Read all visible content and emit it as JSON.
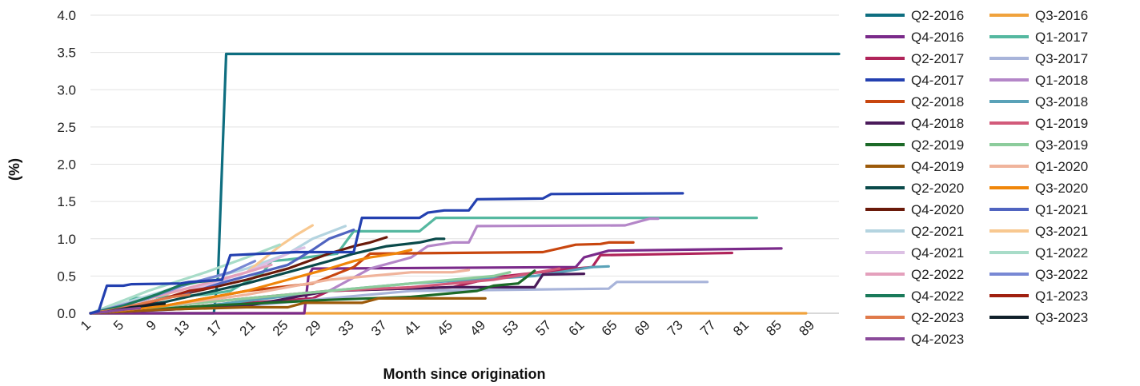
{
  "chart_data": {
    "type": "line",
    "title": "",
    "xlabel": "Month since origination",
    "ylabel": "(%)",
    "xlim": [
      1,
      92
    ],
    "ylim": [
      0,
      4.0
    ],
    "x_ticks": [
      1,
      5,
      9,
      13,
      17,
      21,
      25,
      29,
      33,
      37,
      41,
      45,
      49,
      53,
      57,
      61,
      65,
      69,
      73,
      77,
      81,
      85,
      89
    ],
    "x_tick_labels": [
      "1",
      "5",
      "9",
      "13",
      "17",
      "21",
      "25",
      "29",
      "33",
      "37",
      "41",
      "45",
      "49",
      "53",
      "57",
      "61",
      "65",
      "69",
      "73",
      "77",
      "81",
      "85",
      "89"
    ],
    "y_ticks": [
      0,
      0.5,
      1.0,
      1.5,
      2.0,
      2.5,
      3.0,
      3.5,
      4.0
    ],
    "y_tick_labels": [
      "0.0",
      "0.5",
      "1.0",
      "1.5",
      "2.0",
      "2.5",
      "3.0",
      "3.5",
      "4.0"
    ],
    "grid": "horizontal",
    "legend_position": "right",
    "series": [
      {
        "name": "Q2-2016",
        "color": "#0E6E80",
        "points": [
          [
            1,
            0
          ],
          [
            16,
            0
          ],
          [
            16.5,
            0.5
          ],
          [
            17.5,
            3.48
          ],
          [
            92,
            3.48
          ]
        ]
      },
      {
        "name": "Q3-2016",
        "color": "#F0A23C",
        "points": [
          [
            1,
            0
          ],
          [
            88,
            0
          ]
        ]
      },
      {
        "name": "Q4-2016",
        "color": "#7A2A8A",
        "points": [
          [
            1,
            0
          ],
          [
            27,
            0
          ],
          [
            27.5,
            0.5
          ],
          [
            28,
            0.6
          ],
          [
            60,
            0.62
          ],
          [
            61,
            0.75
          ],
          [
            64,
            0.84
          ],
          [
            85,
            0.87
          ]
        ]
      },
      {
        "name": "Q1-2017",
        "color": "#55B8A0",
        "points": [
          [
            1,
            0
          ],
          [
            5,
            0.05
          ],
          [
            6,
            0.2
          ],
          [
            15,
            0.25
          ],
          [
            18,
            0.3
          ],
          [
            22,
            0.55
          ],
          [
            23,
            0.7
          ],
          [
            25,
            0.72
          ],
          [
            31,
            0.8
          ],
          [
            33,
            1.1
          ],
          [
            41,
            1.1
          ],
          [
            43,
            1.28
          ],
          [
            82,
            1.28
          ]
        ]
      },
      {
        "name": "Q2-2017",
        "color": "#B0245A",
        "points": [
          [
            1,
            0
          ],
          [
            15,
            0.1
          ],
          [
            28,
            0.2
          ],
          [
            30,
            0.3
          ],
          [
            45,
            0.35
          ],
          [
            50,
            0.48
          ],
          [
            58,
            0.58
          ],
          [
            62,
            0.62
          ],
          [
            63,
            0.78
          ],
          [
            79,
            0.81
          ]
        ]
      },
      {
        "name": "Q3-2017",
        "color": "#A8B4DA",
        "points": [
          [
            1,
            0
          ],
          [
            20,
            0.1
          ],
          [
            30,
            0.2
          ],
          [
            40,
            0.3
          ],
          [
            64,
            0.33
          ],
          [
            65,
            0.42
          ],
          [
            76,
            0.42
          ]
        ]
      },
      {
        "name": "Q4-2017",
        "color": "#2340B0",
        "points": [
          [
            1,
            0
          ],
          [
            2,
            0.03
          ],
          [
            3,
            0.37
          ],
          [
            5,
            0.37
          ],
          [
            6,
            0.39
          ],
          [
            12,
            0.4
          ],
          [
            13,
            0.42
          ],
          [
            17,
            0.45
          ],
          [
            18,
            0.78
          ],
          [
            22,
            0.8
          ],
          [
            26,
            0.82
          ],
          [
            33,
            0.82
          ],
          [
            34,
            1.28
          ],
          [
            41,
            1.28
          ],
          [
            42,
            1.35
          ],
          [
            44,
            1.38
          ],
          [
            47,
            1.38
          ],
          [
            48,
            1.53
          ],
          [
            56,
            1.54
          ],
          [
            57,
            1.6
          ],
          [
            73,
            1.61
          ]
        ]
      },
      {
        "name": "Q1-2018",
        "color": "#B486C8",
        "points": [
          [
            1,
            0
          ],
          [
            20,
            0.2
          ],
          [
            30,
            0.3
          ],
          [
            35,
            0.6
          ],
          [
            40,
            0.75
          ],
          [
            42,
            0.9
          ],
          [
            45,
            0.95
          ],
          [
            47,
            0.95
          ],
          [
            48,
            1.17
          ],
          [
            66,
            1.18
          ],
          [
            69,
            1.27
          ],
          [
            70,
            1.27
          ]
        ]
      },
      {
        "name": "Q2-2018",
        "color": "#C8460E",
        "points": [
          [
            1,
            0
          ],
          [
            10,
            0.1
          ],
          [
            20,
            0.3
          ],
          [
            28,
            0.4
          ],
          [
            33,
            0.62
          ],
          [
            35,
            0.8
          ],
          [
            56,
            0.82
          ],
          [
            60,
            0.92
          ],
          [
            63,
            0.93
          ],
          [
            64,
            0.95
          ],
          [
            67,
            0.95
          ]
        ]
      },
      {
        "name": "Q3-2018",
        "color": "#5AA2B8",
        "points": [
          [
            1,
            0
          ],
          [
            15,
            0.1
          ],
          [
            30,
            0.3
          ],
          [
            40,
            0.4
          ],
          [
            55,
            0.5
          ],
          [
            62,
            0.62
          ],
          [
            64,
            0.63
          ]
        ]
      },
      {
        "name": "Q4-2018",
        "color": "#4A1A5A",
        "points": [
          [
            1,
            0
          ],
          [
            20,
            0.1
          ],
          [
            30,
            0.3
          ],
          [
            45,
            0.35
          ],
          [
            55,
            0.35
          ],
          [
            56,
            0.52
          ],
          [
            61,
            0.53
          ]
        ]
      },
      {
        "name": "Q1-2019",
        "color": "#D25A7A",
        "points": [
          [
            1,
            0
          ],
          [
            20,
            0.2
          ],
          [
            30,
            0.3
          ],
          [
            40,
            0.35
          ],
          [
            50,
            0.45
          ],
          [
            58,
            0.6
          ]
        ]
      },
      {
        "name": "Q2-2019",
        "color": "#1C6A28",
        "points": [
          [
            1,
            0
          ],
          [
            15,
            0.1
          ],
          [
            30,
            0.18
          ],
          [
            40,
            0.22
          ],
          [
            48,
            0.3
          ],
          [
            50,
            0.37
          ],
          [
            53,
            0.4
          ],
          [
            55,
            0.57
          ]
        ]
      },
      {
        "name": "Q3-2019",
        "color": "#8CCC9C",
        "points": [
          [
            1,
            0
          ],
          [
            20,
            0.2
          ],
          [
            30,
            0.3
          ],
          [
            40,
            0.4
          ],
          [
            50,
            0.5
          ],
          [
            52,
            0.55
          ]
        ]
      },
      {
        "name": "Q4-2019",
        "color": "#9C5A0A",
        "points": [
          [
            1,
            0
          ],
          [
            10,
            0.05
          ],
          [
            20,
            0.08
          ],
          [
            25,
            0.08
          ],
          [
            27,
            0.14
          ],
          [
            34,
            0.14
          ],
          [
            36,
            0.2
          ],
          [
            49,
            0.2
          ]
        ]
      },
      {
        "name": "Q1-2020",
        "color": "#F0B49C",
        "points": [
          [
            1,
            0
          ],
          [
            10,
            0.1
          ],
          [
            20,
            0.25
          ],
          [
            30,
            0.45
          ],
          [
            40,
            0.55
          ],
          [
            45,
            0.55
          ],
          [
            47,
            0.58
          ]
        ]
      },
      {
        "name": "Q2-2020",
        "color": "#0A4A4A",
        "points": [
          [
            1,
            0
          ],
          [
            10,
            0.15
          ],
          [
            20,
            0.4
          ],
          [
            25,
            0.55
          ],
          [
            30,
            0.7
          ],
          [
            33,
            0.8
          ],
          [
            37,
            0.9
          ],
          [
            41,
            0.95
          ],
          [
            43,
            1.0
          ],
          [
            44,
            1.0
          ]
        ]
      },
      {
        "name": "Q3-2020",
        "color": "#F0860A",
        "points": [
          [
            1,
            0
          ],
          [
            10,
            0.1
          ],
          [
            20,
            0.3
          ],
          [
            25,
            0.45
          ],
          [
            30,
            0.6
          ],
          [
            33,
            0.7
          ],
          [
            35,
            0.75
          ],
          [
            38,
            0.8
          ],
          [
            40,
            0.85
          ]
        ]
      },
      {
        "name": "Q4-2020",
        "color": "#6A1A0A",
        "points": [
          [
            1,
            0
          ],
          [
            10,
            0.2
          ],
          [
            20,
            0.45
          ],
          [
            25,
            0.6
          ],
          [
            30,
            0.8
          ],
          [
            33,
            0.9
          ],
          [
            35,
            0.95
          ],
          [
            37,
            1.02
          ]
        ]
      },
      {
        "name": "Q1-2021",
        "color": "#5064C0",
        "points": [
          [
            1,
            0
          ],
          [
            10,
            0.2
          ],
          [
            20,
            0.5
          ],
          [
            25,
            0.65
          ],
          [
            28,
            0.85
          ],
          [
            30,
            1.0
          ],
          [
            33,
            1.12
          ]
        ]
      },
      {
        "name": "Q2-2021",
        "color": "#B4D4E0",
        "points": [
          [
            1,
            0
          ],
          [
            10,
            0.3
          ],
          [
            20,
            0.6
          ],
          [
            25,
            0.8
          ],
          [
            28,
            1.0
          ],
          [
            32,
            1.17
          ]
        ]
      },
      {
        "name": "Q3-2021",
        "color": "#F8C890",
        "points": [
          [
            1,
            0
          ],
          [
            10,
            0.25
          ],
          [
            20,
            0.55
          ],
          [
            24,
            0.9
          ],
          [
            26,
            1.05
          ],
          [
            28,
            1.18
          ]
        ]
      },
      {
        "name": "Q4-2021",
        "color": "#DCC0E4",
        "points": [
          [
            1,
            0
          ],
          [
            10,
            0.2
          ],
          [
            20,
            0.55
          ],
          [
            24,
            0.75
          ],
          [
            26,
            0.85
          ],
          [
            27,
            0.88
          ]
        ]
      },
      {
        "name": "Q1-2022",
        "color": "#A8DCC8",
        "points": [
          [
            1,
            0
          ],
          [
            8,
            0.3
          ],
          [
            15,
            0.55
          ],
          [
            20,
            0.75
          ],
          [
            24,
            0.92
          ]
        ]
      },
      {
        "name": "Q2-2022",
        "color": "#E4A0BC",
        "points": [
          [
            1,
            0
          ],
          [
            8,
            0.2
          ],
          [
            15,
            0.4
          ],
          [
            20,
            0.55
          ],
          [
            23,
            0.65
          ]
        ]
      },
      {
        "name": "Q3-2022",
        "color": "#7888D4",
        "points": [
          [
            1,
            0
          ],
          [
            8,
            0.2
          ],
          [
            13,
            0.4
          ],
          [
            18,
            0.55
          ],
          [
            21,
            0.7
          ]
        ]
      },
      {
        "name": "Q4-2022",
        "color": "#1A7A5A",
        "points": [
          [
            1,
            0
          ],
          [
            5,
            0.1
          ],
          [
            9,
            0.25
          ],
          [
            12,
            0.38
          ],
          [
            14,
            0.42
          ],
          [
            17,
            0.45
          ]
        ]
      },
      {
        "name": "Q1-2023",
        "color": "#A02010",
        "points": [
          [
            1,
            0
          ],
          [
            5,
            0.05
          ],
          [
            10,
            0.2
          ],
          [
            13,
            0.3
          ],
          [
            16,
            0.35
          ]
        ]
      },
      {
        "name": "Q2-2023",
        "color": "#E07A4A",
        "points": [
          [
            1,
            0
          ],
          [
            4,
            0.05
          ],
          [
            8,
            0.15
          ],
          [
            11,
            0.22
          ],
          [
            13,
            0.25
          ]
        ]
      },
      {
        "name": "Q3-2023",
        "color": "#10202A",
        "points": [
          [
            1,
            0
          ],
          [
            3,
            0.02
          ],
          [
            6,
            0.08
          ],
          [
            9,
            0.12
          ],
          [
            10,
            0.13
          ]
        ]
      },
      {
        "name": "Q4-2023",
        "color": "#8A4A9A",
        "points": [
          [
            1,
            0
          ],
          [
            3,
            0.02
          ],
          [
            5,
            0.05
          ],
          [
            7,
            0.07
          ]
        ]
      }
    ]
  }
}
